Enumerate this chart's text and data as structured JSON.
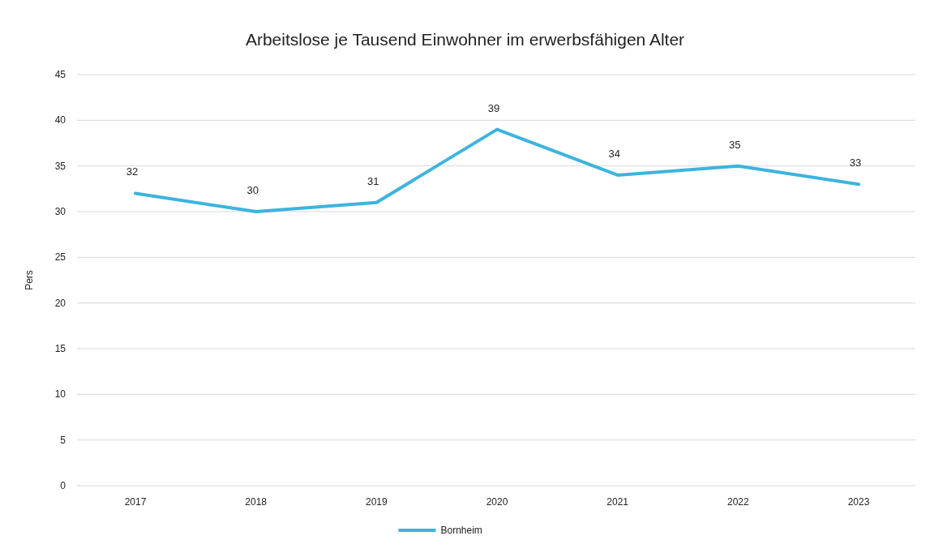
{
  "chart_data": {
    "type": "line",
    "title": "Arbeitslose je Tausend Einwohner im erwerbsfähigen Alter",
    "ylabel": "Pers",
    "categories": [
      "2017",
      "2018",
      "2019",
      "2020",
      "2021",
      "2022",
      "2023"
    ],
    "series": [
      {
        "name": "Bornheim",
        "color": "#3cb4de",
        "values": [
          32,
          30,
          31,
          39,
          34,
          35,
          33
        ]
      }
    ],
    "ylim": [
      0,
      45
    ],
    "yticks": [
      0,
      5,
      10,
      15,
      20,
      25,
      30,
      35,
      40,
      45
    ],
    "grid": "y",
    "legend": "bottom",
    "data_labels": true,
    "marker": "none",
    "line_style": "solid"
  }
}
